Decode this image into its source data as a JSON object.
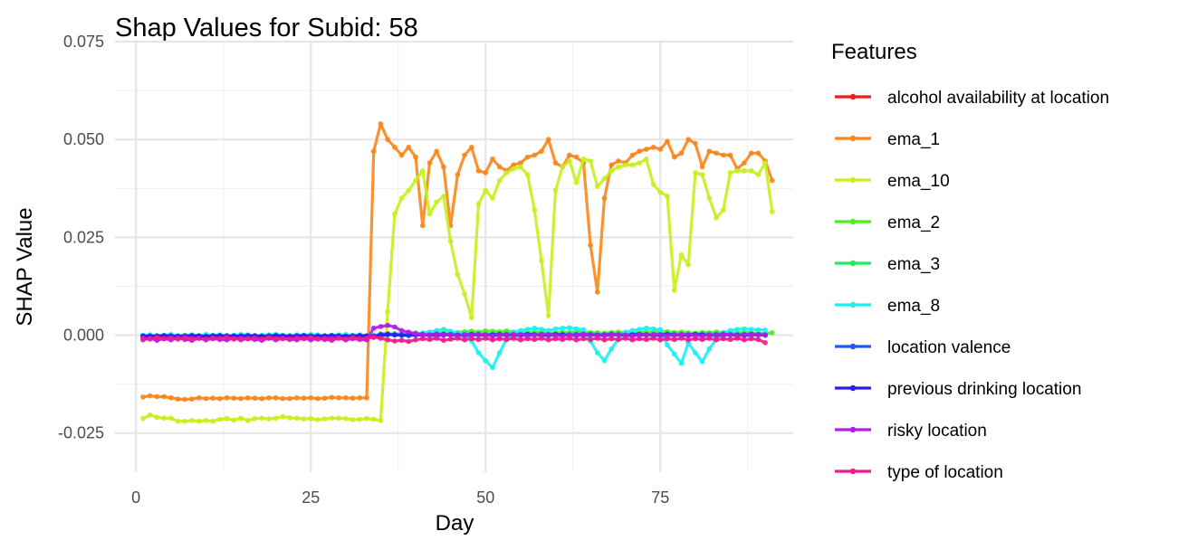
{
  "chart_data": {
    "type": "line",
    "title": "Shap Values for Subid: 58",
    "xlabel": "Day",
    "ylabel": "SHAP Value",
    "xlim": [
      -3,
      94
    ],
    "ylim": [
      -0.035,
      0.075
    ],
    "x_ticks": [
      0,
      25,
      50,
      75
    ],
    "y_ticks": [
      -0.025,
      0.0,
      0.025,
      0.05,
      0.075
    ],
    "y_tick_labels": [
      "-0.025",
      "0.000",
      "0.025",
      "0.050",
      "0.075"
    ],
    "grid": true,
    "markers": true,
    "legend": {
      "title": "Features",
      "placement": "right"
    },
    "series": [
      {
        "name": "alcohol availability at location",
        "color": "#f8191b",
        "values": [
          -0.0002,
          -0.0001,
          -0.0002,
          -0.0001,
          -0.0001,
          -0.0002,
          -0.0001,
          -0.0001,
          -0.0002,
          -0.0001,
          -0.0001,
          -0.0002,
          -0.0001,
          -0.0001,
          -0.0002,
          -0.0001,
          -0.0001,
          -0.0002,
          -0.0001,
          -0.0001,
          -0.0002,
          -0.0001,
          -0.0001,
          -0.0002,
          -0.0001,
          -0.0001,
          -0.0002,
          -0.0001,
          -0.0001,
          -0.0002,
          -0.0001,
          -0.0001,
          -0.0002,
          -0.0001,
          0.0003,
          0.0004,
          0.0002,
          0.0003,
          0.0002,
          0.0003,
          0.0002,
          0.0003,
          0.0002,
          0.0003,
          0.0002,
          0.0003,
          0.0002,
          0.0003,
          0.0002,
          0.0003,
          0.0002,
          0.0003,
          0.0002,
          0.0003,
          0.0002,
          0.0003,
          0.0002,
          0.0003,
          0.0002,
          0.0003,
          0.0002,
          0.0003,
          0.0002,
          0.0003,
          0.0002,
          0.0003,
          0.0002,
          0.0003,
          0.0002,
          0.0003,
          0.0002,
          0.0003,
          0.0002,
          0.0003,
          0.0002,
          0.0003,
          0.0002,
          0.0003,
          0.0002,
          0.0003,
          0.0002,
          0.0003,
          0.0002,
          0.0003,
          0.0002,
          0.0003,
          0.0002,
          0.0003,
          0.0002,
          0.0003
        ]
      },
      {
        "name": "ema_1",
        "color": "#f8861b",
        "values": [
          -0.0158,
          -0.0155,
          -0.0157,
          -0.0157,
          -0.016,
          -0.0163,
          -0.0164,
          -0.0163,
          -0.016,
          -0.0162,
          -0.0161,
          -0.0162,
          -0.016,
          -0.0161,
          -0.0162,
          -0.016,
          -0.0161,
          -0.0162,
          -0.016,
          -0.016,
          -0.0162,
          -0.0162,
          -0.016,
          -0.0161,
          -0.016,
          -0.0162,
          -0.0161,
          -0.0159,
          -0.016,
          -0.016,
          -0.0161,
          -0.016,
          -0.016,
          0.047,
          0.054,
          0.05,
          0.048,
          0.046,
          0.048,
          0.0455,
          0.028,
          0.044,
          0.047,
          0.043,
          0.028,
          0.041,
          0.046,
          0.048,
          0.042,
          0.0415,
          0.045,
          0.043,
          0.042,
          0.0435,
          0.044,
          0.0455,
          0.046,
          0.047,
          0.05,
          0.044,
          0.043,
          0.046,
          0.0455,
          0.044,
          0.023,
          0.011,
          0.035,
          0.0435,
          0.0445,
          0.044,
          0.046,
          0.047,
          0.0475,
          0.048,
          0.0475,
          0.0495,
          0.0455,
          0.0465,
          0.05,
          0.049,
          0.043,
          0.047,
          0.0465,
          0.046,
          0.046,
          0.0425,
          0.044,
          0.0465,
          0.0465,
          0.0445,
          0.0395
        ]
      },
      {
        "name": "ema_10",
        "color": "#c6f01b",
        "values": [
          -0.0213,
          -0.0204,
          -0.021,
          -0.0212,
          -0.0212,
          -0.022,
          -0.022,
          -0.0218,
          -0.022,
          -0.0218,
          -0.022,
          -0.0215,
          -0.0213,
          -0.0217,
          -0.0212,
          -0.0218,
          -0.0213,
          -0.0212,
          -0.0214,
          -0.0212,
          -0.0208,
          -0.0211,
          -0.0212,
          -0.0214,
          -0.0213,
          -0.0216,
          -0.0214,
          -0.0212,
          -0.0212,
          -0.0213,
          -0.0216,
          -0.0215,
          -0.0213,
          -0.0215,
          -0.0218,
          0.006,
          0.031,
          0.035,
          0.037,
          0.0395,
          0.042,
          0.031,
          0.034,
          0.0355,
          0.024,
          0.0155,
          0.0105,
          0.0045,
          0.0335,
          0.037,
          0.035,
          0.0395,
          0.0415,
          0.0425,
          0.043,
          0.041,
          0.032,
          0.019,
          0.005,
          0.037,
          0.043,
          0.0445,
          0.039,
          0.045,
          0.0445,
          0.038,
          0.04,
          0.042,
          0.043,
          0.0435,
          0.0435,
          0.044,
          0.045,
          0.0385,
          0.0365,
          0.0355,
          0.0115,
          0.0205,
          0.018,
          0.0415,
          0.041,
          0.035,
          0.03,
          0.032,
          0.0415,
          0.042,
          0.042,
          0.042,
          0.041,
          0.044,
          0.0315
        ]
      },
      {
        "name": "ema_2",
        "color": "#4bf01b",
        "values": [
          -0.0005,
          -0.0004,
          -0.0006,
          -0.0005,
          -0.0004,
          -0.0005,
          -0.0006,
          -0.0004,
          -0.0005,
          -0.0006,
          -0.0004,
          -0.0005,
          -0.0006,
          -0.0004,
          -0.0005,
          -0.0006,
          -0.0004,
          -0.0005,
          -0.0006,
          -0.0004,
          -0.0005,
          -0.0006,
          -0.0004,
          -0.0005,
          -0.0006,
          -0.0004,
          -0.0005,
          -0.0006,
          -0.0004,
          -0.0005,
          -0.0006,
          -0.0004,
          -0.0005,
          -0.0006,
          -0.0004,
          0.0002,
          0.0004,
          0.0003,
          0.0005,
          0.0006,
          0.0004,
          0.0007,
          0.0005,
          0.0006,
          0.0008,
          0.0007,
          0.0009,
          0.001,
          0.0008,
          0.0011,
          0.001,
          0.0009,
          0.0011,
          0.0008,
          0.0007,
          0.0006,
          0.0008,
          0.0007,
          0.0005,
          0.0006,
          0.0008,
          0.0007,
          0.0009,
          0.0008,
          0.0007,
          0.0006,
          0.0005,
          0.0007,
          0.0008,
          0.0006,
          0.0005,
          0.0007,
          0.0009,
          0.0008,
          0.001,
          0.0009,
          0.0007,
          0.0008,
          0.0006,
          0.0005,
          0.0007,
          0.0006,
          0.0008,
          0.0007,
          0.0006,
          0.0005,
          0.0007,
          0.0006,
          0.0005,
          0.0004,
          0.0006
        ]
      },
      {
        "name": "ema_3",
        "color": "#1bf05a",
        "values": [
          -0.0003,
          -0.0002,
          -0.0004,
          -0.0003,
          -0.0002,
          -0.0003,
          -0.0004,
          -0.0002,
          -0.0003,
          -0.0004,
          -0.0002,
          -0.0003,
          -0.0004,
          -0.0002,
          -0.0003,
          -0.0004,
          -0.0002,
          -0.0003,
          -0.0004,
          -0.0002,
          -0.0003,
          -0.0004,
          -0.0002,
          -0.0003,
          -0.0004,
          -0.0002,
          -0.0003,
          -0.0004,
          -0.0002,
          -0.0003,
          -0.0004,
          -0.0002,
          -0.0003,
          -0.0004,
          0.0,
          0.0002,
          0.0001,
          0.0003,
          0.0002,
          0.0004,
          0.0003,
          0.0002,
          0.0004,
          0.0003,
          0.0002,
          0.0004,
          0.0005,
          0.0003,
          0.0004,
          0.0002,
          0.0003,
          0.0005,
          0.0004,
          0.0003,
          0.0002,
          0.0004,
          0.0003,
          0.0005,
          0.0004,
          0.0003,
          0.0002,
          0.0004,
          0.0003,
          0.0005,
          0.0004,
          0.0003,
          0.0002,
          0.0004,
          0.0003,
          0.0005,
          0.0004,
          0.0003,
          0.0002,
          0.0004,
          0.0003,
          0.0005,
          0.0004,
          0.0003,
          0.0002,
          0.0004,
          0.0003,
          0.0005,
          0.0004,
          0.0003,
          0.0002,
          0.0004,
          0.0003,
          0.0005,
          0.0004,
          0.0003
        ]
      },
      {
        "name": "ema_8",
        "color": "#1bf0f0",
        "values": [
          0.0,
          0.0001,
          -0.0001,
          0.0,
          0.0002,
          -0.0001,
          0.0,
          0.0001,
          -0.0001,
          0.0002,
          0.0,
          0.0001,
          -0.0001,
          0.0,
          0.0002,
          0.0001,
          -0.0001,
          0.0,
          0.0001,
          0.0002,
          0.0,
          -0.0001,
          0.0001,
          0.0,
          0.0002,
          0.0001,
          -0.0001,
          0.0,
          0.0001,
          0.0002,
          0.0,
          0.0001,
          -0.0001,
          0.0,
          0.0002,
          0.0001,
          0.0003,
          0.0004,
          0.0005,
          0.0003,
          0.0006,
          0.0008,
          0.0012,
          0.0015,
          0.001,
          0.0005,
          0.0003,
          -0.0015,
          -0.0045,
          -0.0065,
          -0.0083,
          -0.0045,
          -0.001,
          0.0008,
          0.0012,
          0.0015,
          0.0018,
          0.0015,
          0.0012,
          0.0016,
          0.0018,
          0.0019,
          0.0016,
          0.0014,
          -0.0015,
          -0.0045,
          -0.0065,
          -0.0035,
          -0.001,
          0.0008,
          0.0012,
          0.0015,
          0.0018,
          0.0016,
          0.0014,
          -0.0025,
          -0.0048,
          -0.0072,
          -0.002,
          -0.0045,
          -0.0068,
          -0.0035,
          -0.001,
          0.0006,
          0.0012,
          0.0015,
          0.0016,
          0.0015,
          0.0014,
          0.0013
        ]
      },
      {
        "name": "location valence",
        "color": "#1b5af0",
        "values": [
          -0.0003,
          -0.0002,
          -0.0004,
          -0.0003,
          -0.0002,
          -0.0003,
          -0.0004,
          -0.0002,
          -0.0003,
          -0.0004,
          -0.0002,
          -0.0003,
          -0.0004,
          -0.0002,
          -0.0003,
          -0.0004,
          -0.0002,
          -0.0003,
          -0.0004,
          -0.0002,
          -0.0003,
          -0.0004,
          -0.0002,
          -0.0003,
          -0.0004,
          -0.0002,
          -0.0003,
          -0.0004,
          -0.0002,
          -0.0003,
          -0.0004,
          -0.0002,
          -0.0003,
          -0.0004,
          -0.0002,
          0.0002,
          0.0001,
          0.0,
          -0.0001,
          0.0,
          0.0001,
          0.0,
          -0.0001,
          0.0,
          0.0001,
          0.0,
          -0.0001,
          0.0,
          0.0001,
          0.0,
          -0.0001,
          0.0,
          0.0001,
          0.0,
          -0.0001,
          0.0,
          0.0001,
          0.0,
          -0.0001,
          0.0,
          0.0001,
          0.0,
          -0.0001,
          0.0,
          0.0001,
          0.0,
          -0.0001,
          0.0,
          0.0001,
          0.0,
          -0.0001,
          0.0,
          0.0001,
          0.0,
          -0.0001,
          0.0,
          0.0001,
          0.0,
          -0.0001,
          0.0,
          0.0001,
          0.0,
          -0.0001,
          0.0,
          0.0001,
          0.0,
          -0.0001,
          0.0,
          0.0001,
          0.0
        ]
      },
      {
        "name": "previous drinking location",
        "color": "#2e1bf0",
        "values": [
          -0.0002,
          -0.0003,
          -0.0002,
          -0.0001,
          -0.0002,
          -0.0003,
          -0.0002,
          -0.0001,
          -0.0002,
          -0.0003,
          -0.0002,
          -0.0001,
          -0.0002,
          -0.0003,
          -0.0002,
          -0.0001,
          -0.0002,
          -0.0003,
          -0.0002,
          -0.0001,
          -0.0002,
          -0.0003,
          -0.0002,
          -0.0001,
          -0.0002,
          -0.0003,
          -0.0002,
          -0.0001,
          -0.0002,
          -0.0003,
          -0.0002,
          -0.0001,
          -0.0002,
          -0.0003,
          0.0001,
          0.0002,
          0.0001,
          0.0,
          0.0001,
          0.0002,
          0.0001,
          0.0,
          0.0001,
          0.0002,
          0.0001,
          0.0,
          0.0001,
          0.0002,
          0.0001,
          0.0,
          0.0001,
          0.0002,
          0.0001,
          0.0,
          0.0001,
          0.0002,
          0.0001,
          0.0,
          0.0001,
          0.0002,
          0.0001,
          0.0,
          0.0001,
          0.0002,
          0.0001,
          0.0,
          0.0001,
          0.0002,
          0.0001,
          0.0,
          0.0001,
          0.0002,
          0.0001,
          0.0,
          0.0001,
          0.0002,
          0.0001,
          0.0,
          0.0001,
          0.0002,
          0.0001,
          0.0,
          0.0001,
          0.0002,
          0.0001,
          0.0,
          0.0001,
          0.0002,
          0.0001,
          0.0
        ]
      },
      {
        "name": "risky location",
        "color": "#b21bf0",
        "values": [
          -0.0012,
          -0.0008,
          -0.0013,
          -0.0009,
          -0.0012,
          -0.0007,
          -0.0011,
          -0.0013,
          -0.0008,
          -0.0012,
          -0.0009,
          -0.0011,
          -0.0012,
          -0.0008,
          -0.0012,
          -0.0009,
          -0.0011,
          -0.0013,
          -0.0008,
          -0.0012,
          -0.0009,
          -0.0011,
          -0.0012,
          -0.0008,
          -0.0012,
          -0.0009,
          -0.0011,
          -0.0013,
          -0.0008,
          -0.0012,
          -0.0009,
          -0.0011,
          -0.0012,
          0.0018,
          0.0022,
          0.0025,
          0.0021,
          0.0012,
          0.0008,
          0.0004,
          0.0002,
          0.0001,
          0.0003,
          0.0,
          0.0002,
          -0.0001,
          0.0001,
          0.0,
          0.0002,
          0.0001,
          -0.0002,
          0.0001,
          0.0,
          0.0002,
          0.0001,
          -0.0001,
          0.0,
          0.0002,
          0.0001,
          0.0,
          -0.0002,
          0.0001,
          0.0,
          0.0002,
          0.0001,
          -0.0001,
          0.0,
          0.0002,
          0.0001,
          0.0,
          -0.0002,
          0.0001,
          0.0,
          0.0002,
          0.0001,
          -0.0001,
          0.0,
          0.0002,
          0.0001,
          0.0,
          -0.0002,
          0.0001,
          0.0,
          0.0002,
          0.0001,
          -0.0001,
          0.0,
          0.0002,
          0.0001,
          0.0
        ]
      },
      {
        "name": "type of location",
        "color": "#f01b8c",
        "values": [
          -0.0008,
          -0.001,
          -0.0006,
          -0.0009,
          -0.0007,
          -0.001,
          -0.0006,
          -0.0009,
          -0.0008,
          -0.001,
          -0.0007,
          -0.0009,
          -0.0006,
          -0.001,
          -0.0008,
          -0.0009,
          -0.0007,
          -0.001,
          -0.0006,
          -0.0009,
          -0.0008,
          -0.001,
          -0.0007,
          -0.0009,
          -0.0006,
          -0.001,
          -0.0008,
          -0.0009,
          -0.0007,
          -0.001,
          -0.0006,
          -0.0009,
          -0.0008,
          -0.0005,
          -0.0008,
          -0.0012,
          -0.0015,
          -0.0013,
          -0.0016,
          -0.0012,
          -0.0009,
          -0.0011,
          -0.0008,
          -0.0013,
          -0.001,
          -0.0008,
          -0.0012,
          -0.0009,
          -0.0011,
          -0.0008,
          -0.0012,
          -0.0009,
          -0.0011,
          -0.0008,
          -0.0012,
          -0.0009,
          -0.0011,
          -0.0008,
          -0.0012,
          -0.0009,
          -0.0011,
          -0.0008,
          -0.0012,
          -0.0009,
          -0.0011,
          -0.0008,
          -0.0012,
          -0.0009,
          -0.0011,
          -0.0008,
          -0.0012,
          -0.0009,
          -0.0011,
          -0.0008,
          -0.0012,
          -0.0009,
          -0.0011,
          -0.0008,
          -0.0012,
          -0.0009,
          -0.0011,
          -0.0008,
          -0.0012,
          -0.0009,
          -0.0011,
          -0.0008,
          -0.0012,
          -0.0009,
          -0.0011,
          -0.0019
        ]
      }
    ]
  }
}
